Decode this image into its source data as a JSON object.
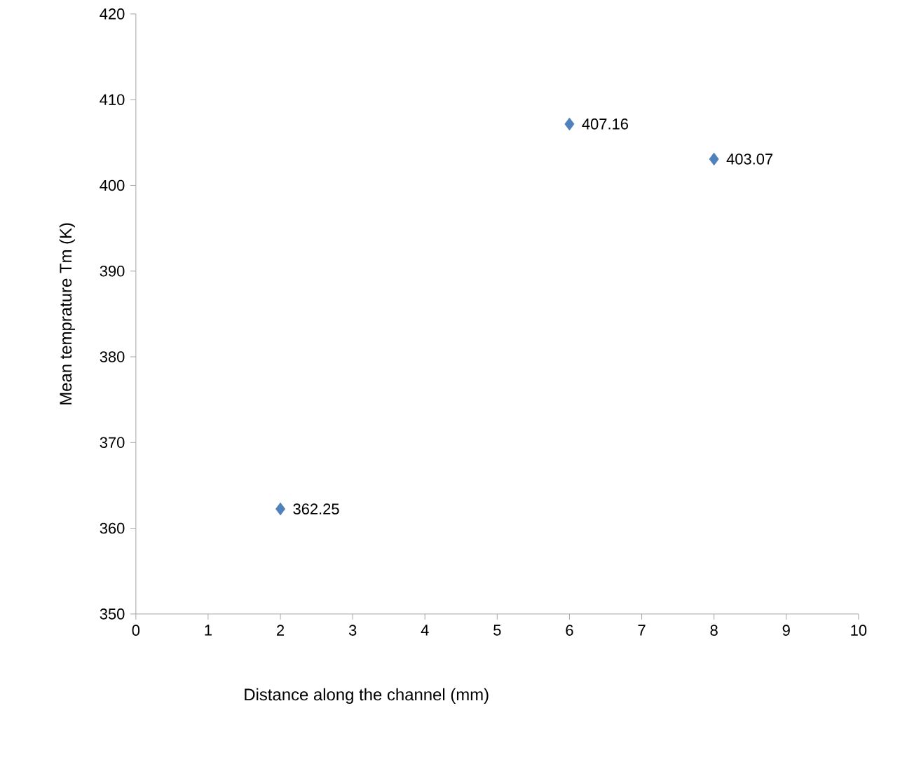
{
  "chart_data": {
    "type": "scatter",
    "xlabel": "Distance along the channel (mm)",
    "ylabel": "Mean temprature Tm (K)",
    "x": [
      2,
      6,
      8
    ],
    "values": [
      362.25,
      407.16,
      403.07
    ],
    "color": "#4f81bd",
    "marker": "diamond",
    "data_labels": true,
    "xlim": [
      0,
      10
    ],
    "ylim": [
      350,
      420
    ],
    "xticks": [
      0,
      1,
      2,
      3,
      4,
      5,
      6,
      7,
      8,
      9,
      10
    ],
    "yticks": [
      350,
      360,
      370,
      380,
      390,
      400,
      410,
      420
    ]
  }
}
